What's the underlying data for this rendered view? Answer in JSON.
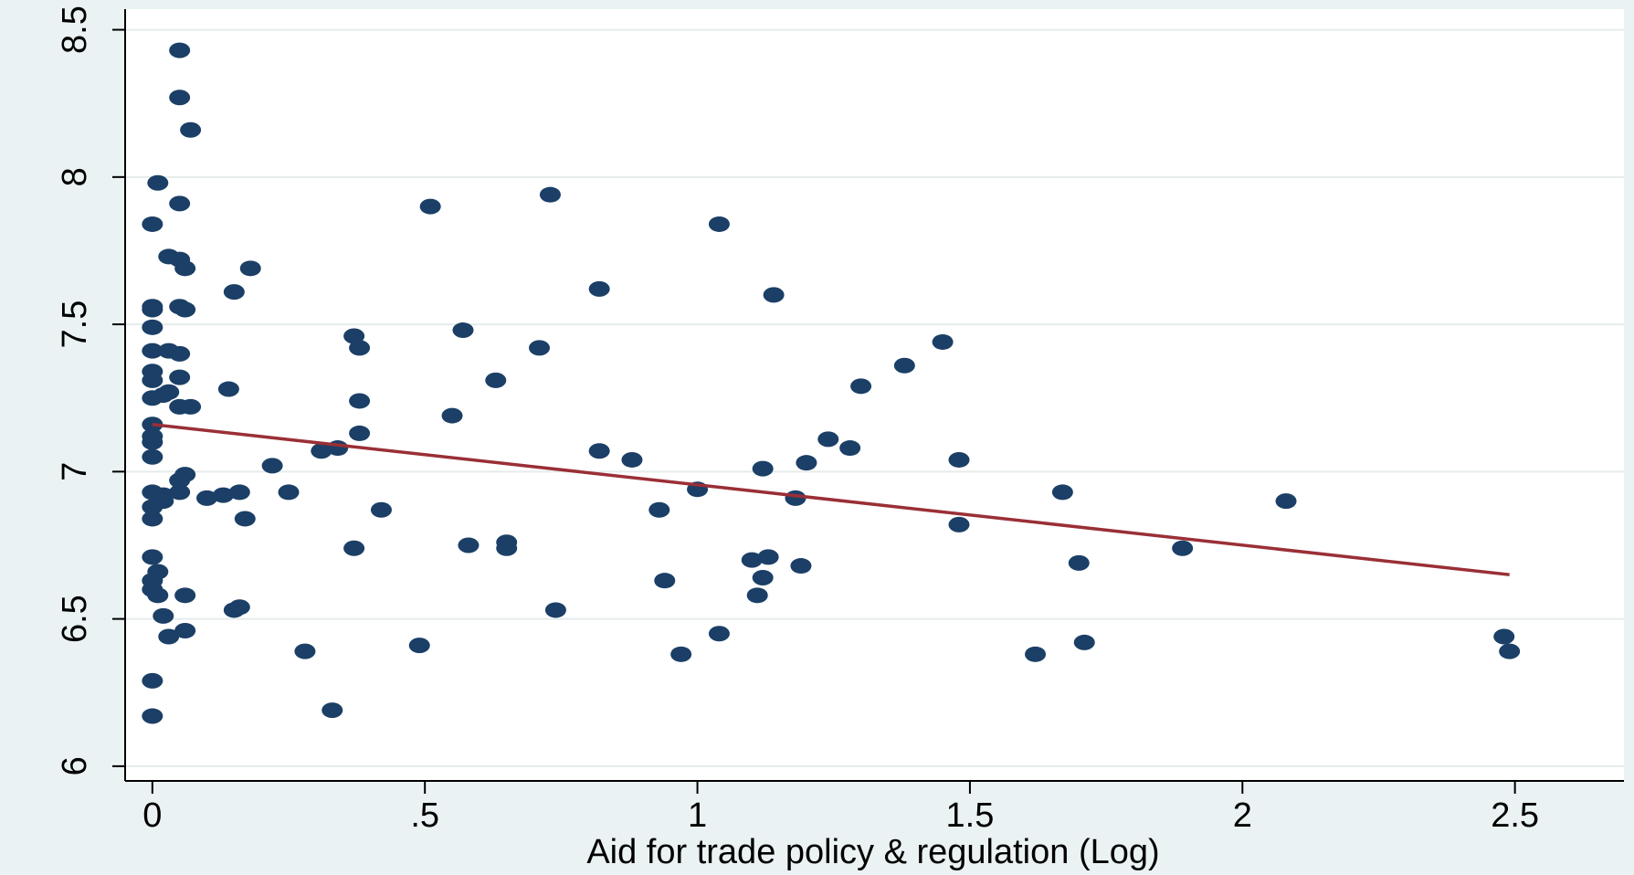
{
  "chart_data": {
    "type": "scatter",
    "title": "",
    "xlabel": "Aid for trade policy & regulation (Log)",
    "ylabel": "",
    "xlim": [
      -0.05,
      2.7
    ],
    "ylim": [
      5.95,
      8.57
    ],
    "x_ticks": [
      0,
      0.5,
      1,
      1.5,
      2,
      2.5
    ],
    "x_tick_labels": [
      "0",
      ".5",
      "1",
      "1.5",
      "2",
      "2.5"
    ],
    "y_ticks": [
      6,
      6.5,
      7,
      7.5,
      8,
      8.5
    ],
    "y_tick_labels": [
      "6",
      "6.5",
      "7",
      "7.5",
      "8",
      "8.5"
    ],
    "grid": "horizontal",
    "legend": "none",
    "colors": {
      "background": "#eaf2f3",
      "plot_area": "#ffffff",
      "marker": "#1b3f66",
      "fit_line": "#9a2f36",
      "grid": "#e6ecec",
      "axis": "#000000"
    },
    "series": [
      {
        "marker": "filled-circle",
        "points": [
          [
            0.05,
            8.43
          ],
          [
            0.05,
            8.27
          ],
          [
            0.07,
            8.16
          ],
          [
            0.01,
            7.98
          ],
          [
            0.05,
            7.91
          ],
          [
            0.0,
            7.84
          ],
          [
            0.03,
            7.73
          ],
          [
            0.05,
            7.72
          ],
          [
            0.06,
            7.69
          ],
          [
            0.18,
            7.69
          ],
          [
            0.15,
            7.61
          ],
          [
            0.0,
            7.56
          ],
          [
            0.0,
            7.55
          ],
          [
            0.05,
            7.56
          ],
          [
            0.06,
            7.55
          ],
          [
            0.0,
            7.49
          ],
          [
            0.0,
            7.41
          ],
          [
            0.03,
            7.41
          ],
          [
            0.05,
            7.4
          ],
          [
            0.0,
            7.34
          ],
          [
            0.0,
            7.31
          ],
          [
            0.05,
            7.32
          ],
          [
            0.03,
            7.27
          ],
          [
            0.02,
            7.26
          ],
          [
            0.0,
            7.25
          ],
          [
            0.05,
            7.22
          ],
          [
            0.07,
            7.22
          ],
          [
            0.0,
            7.16
          ],
          [
            0.0,
            7.12
          ],
          [
            0.0,
            7.1
          ],
          [
            0.0,
            7.05
          ],
          [
            0.06,
            6.99
          ],
          [
            0.05,
            6.97
          ],
          [
            0.0,
            6.93
          ],
          [
            0.02,
            6.92
          ],
          [
            0.05,
            6.93
          ],
          [
            0.02,
            6.9
          ],
          [
            0.0,
            6.88
          ],
          [
            0.0,
            6.84
          ],
          [
            0.0,
            6.71
          ],
          [
            0.01,
            6.66
          ],
          [
            0.0,
            6.63
          ],
          [
            0.0,
            6.6
          ],
          [
            0.01,
            6.58
          ],
          [
            0.06,
            6.58
          ],
          [
            0.02,
            6.51
          ],
          [
            0.06,
            6.46
          ],
          [
            0.03,
            6.44
          ],
          [
            0.0,
            6.29
          ],
          [
            0.0,
            6.17
          ],
          [
            0.14,
            7.28
          ],
          [
            0.1,
            6.91
          ],
          [
            0.13,
            6.92
          ],
          [
            0.16,
            6.93
          ],
          [
            0.17,
            6.84
          ],
          [
            0.15,
            6.53
          ],
          [
            0.16,
            6.54
          ],
          [
            0.22,
            7.02
          ],
          [
            0.25,
            6.93
          ],
          [
            0.28,
            6.39
          ],
          [
            0.31,
            7.07
          ],
          [
            0.34,
            7.08
          ],
          [
            0.33,
            6.19
          ],
          [
            0.37,
            7.46
          ],
          [
            0.38,
            7.42
          ],
          [
            0.38,
            7.24
          ],
          [
            0.38,
            7.13
          ],
          [
            0.37,
            6.74
          ],
          [
            0.42,
            6.87
          ],
          [
            0.49,
            6.41
          ],
          [
            0.51,
            7.9
          ],
          [
            0.55,
            7.19
          ],
          [
            0.57,
            7.48
          ],
          [
            0.58,
            6.75
          ],
          [
            0.63,
            7.31
          ],
          [
            0.65,
            6.76
          ],
          [
            0.65,
            6.74
          ],
          [
            0.71,
            7.42
          ],
          [
            0.73,
            7.94
          ],
          [
            0.74,
            6.53
          ],
          [
            0.82,
            7.62
          ],
          [
            0.82,
            7.07
          ],
          [
            0.88,
            7.04
          ],
          [
            0.93,
            6.87
          ],
          [
            0.94,
            6.63
          ],
          [
            0.97,
            6.38
          ],
          [
            1.0,
            6.94
          ],
          [
            1.04,
            7.84
          ],
          [
            1.04,
            6.45
          ],
          [
            1.1,
            6.7
          ],
          [
            1.12,
            7.01
          ],
          [
            1.12,
            6.64
          ],
          [
            1.11,
            6.58
          ],
          [
            1.13,
            6.71
          ],
          [
            1.14,
            7.6
          ],
          [
            1.18,
            6.91
          ],
          [
            1.19,
            6.68
          ],
          [
            1.2,
            7.03
          ],
          [
            1.24,
            7.11
          ],
          [
            1.28,
            7.08
          ],
          [
            1.3,
            7.29
          ],
          [
            1.38,
            7.36
          ],
          [
            1.45,
            7.44
          ],
          [
            1.48,
            7.04
          ],
          [
            1.48,
            6.82
          ],
          [
            1.62,
            6.38
          ],
          [
            1.67,
            6.93
          ],
          [
            1.7,
            6.69
          ],
          [
            1.71,
            6.42
          ],
          [
            1.89,
            6.74
          ],
          [
            2.08,
            6.9
          ],
          [
            2.48,
            6.44
          ],
          [
            2.49,
            6.39
          ]
        ]
      }
    ],
    "fit_line": {
      "x": [
        0.0,
        2.49
      ],
      "y": [
        7.16,
        6.65
      ]
    }
  }
}
